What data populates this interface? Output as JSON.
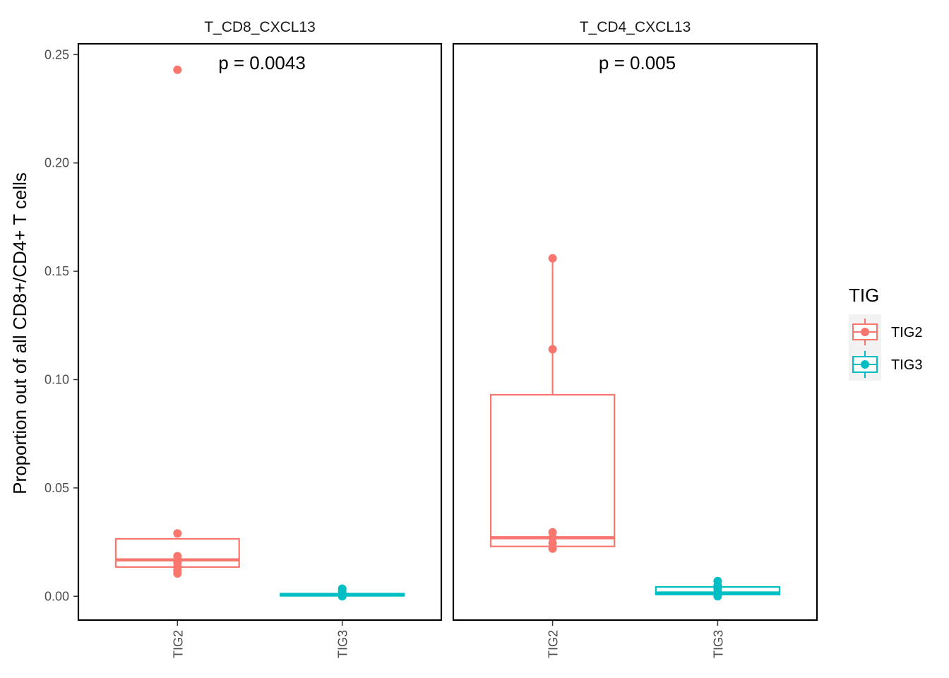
{
  "chart_data": {
    "type": "box",
    "ylabel": "Proportion out of all CD8+/CD4+ T cells",
    "ylim": [
      -0.011,
      0.255
    ],
    "y_ticks": [
      0.0,
      0.05,
      0.1,
      0.15,
      0.2,
      0.25
    ],
    "y_tick_labels": [
      "0.00",
      "0.05",
      "0.10",
      "0.15",
      "0.20",
      "0.25"
    ],
    "categories": [
      "TIG2",
      "TIG3"
    ],
    "colors": {
      "TIG2": "#F8766D",
      "TIG3": "#00BFC4"
    },
    "legend": {
      "title": "TIG",
      "position": "right",
      "entries": [
        "TIG2",
        "TIG3"
      ]
    },
    "grid": false,
    "panels": [
      {
        "title": "T_CD8_CXCL13",
        "annotation": "p = 0.0043",
        "boxes": [
          {
            "group": "TIG2",
            "q1": 0.0135,
            "median": 0.0168,
            "q3": 0.0265,
            "whisker_low": 0.0105,
            "whisker_high": 0.0265,
            "points": [
              0.243,
              0.029,
              0.0185,
              0.017,
              0.0155,
              0.0135,
              0.012,
              0.0105
            ]
          },
          {
            "group": "TIG3",
            "q1": 0.0002,
            "median": 0.0007,
            "q3": 0.0012,
            "whisker_low": 0.0,
            "whisker_high": 0.0012,
            "points": [
              0.0035,
              0.0025,
              0.0015,
              0.001,
              0.0005,
              0.0,
              0.0
            ]
          }
        ]
      },
      {
        "title": "T_CD4_CXCL13",
        "annotation": "p = 0.005",
        "boxes": [
          {
            "group": "TIG2",
            "q1": 0.023,
            "median": 0.027,
            "q3": 0.093,
            "whisker_low": 0.022,
            "whisker_high": 0.156,
            "points": [
              0.156,
              0.114,
              0.0295,
              0.027,
              0.0245,
              0.022
            ]
          },
          {
            "group": "TIG3",
            "q1": 0.0008,
            "median": 0.0015,
            "q3": 0.0043,
            "whisker_low": 0.0,
            "whisker_high": 0.007,
            "points": [
              0.007,
              0.005,
              0.0035,
              0.002,
              0.0008,
              0.0
            ]
          }
        ]
      }
    ]
  }
}
